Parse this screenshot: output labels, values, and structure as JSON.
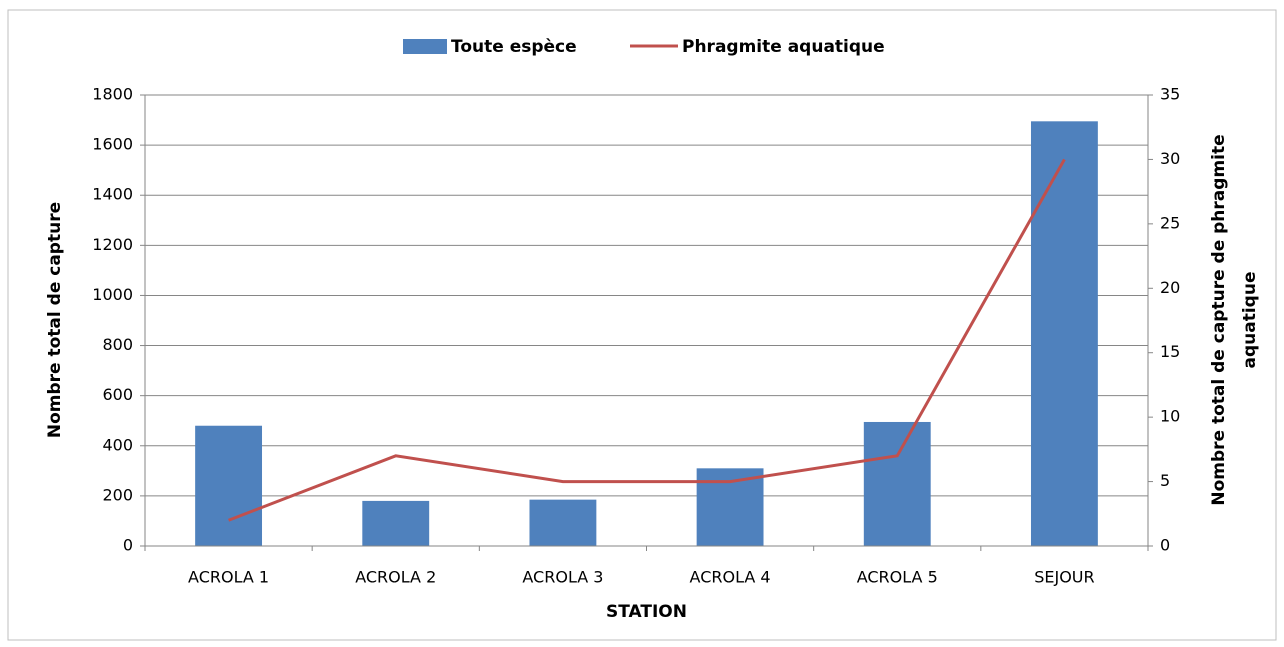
{
  "chart_data": {
    "type": "combo",
    "xlabel": "STATION",
    "ylabel": "Nombre total de capture",
    "y2label": [
      "Nombre total de capture de phragmite",
      "aquatique"
    ],
    "categories": [
      "ACROLA 1",
      "ACROLA 2",
      "ACROLA 3",
      "ACROLA 4",
      "ACROLA 5",
      "SEJOUR"
    ],
    "series": [
      {
        "name": "Toute espèce",
        "type": "bar",
        "color": "#4f81bd",
        "values": [
          480,
          180,
          185,
          310,
          495,
          1695
        ]
      },
      {
        "name": "Phragmite aquatique",
        "type": "line",
        "color": "#c0504d",
        "axis": "y2",
        "values": [
          2,
          7,
          5,
          5,
          7,
          30
        ]
      }
    ],
    "ylim": [
      0,
      1800
    ],
    "yticks": [
      0,
      200,
      400,
      600,
      800,
      1000,
      1200,
      1400,
      1600,
      1800
    ],
    "y2lim": [
      0,
      35
    ],
    "y2ticks": [
      0,
      5,
      10,
      15,
      20,
      25,
      30,
      35
    ],
    "grid": true,
    "legend": "top"
  }
}
